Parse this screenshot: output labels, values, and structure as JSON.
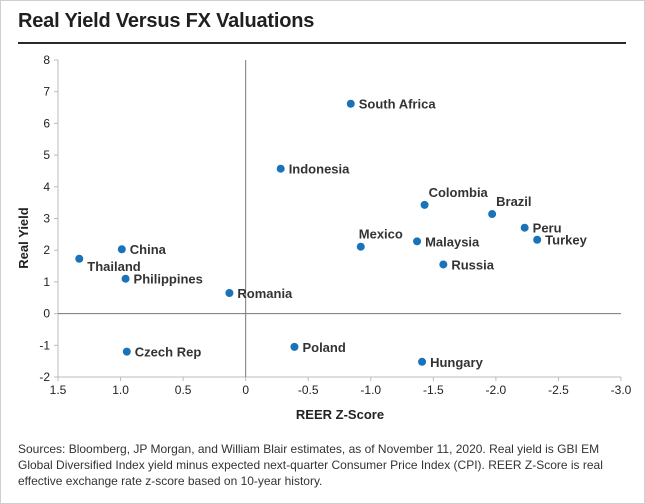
{
  "title": "Real Yield Versus FX Valuations",
  "footnote": "Sources: Bloomberg, JP Morgan, and William Blair estimates, as of November 11, 2020. Real yield is GBI EM Global Diversified Index yield minus expected next-quarter Consumer Price Index (CPI). REER Z-Score is real effective exchange rate z-score based on 10-year history.",
  "colors": {
    "point": "#1a73b8",
    "axis": "#bbbbbb",
    "zero_line": "#777777",
    "text": "#222222"
  },
  "chart_data": {
    "type": "scatter",
    "xlabel": "REER Z-Score",
    "ylabel": "Real Yield",
    "xlim": [
      1.5,
      -3.0
    ],
    "ylim": [
      -2,
      8
    ],
    "x_reversed": true,
    "x_ticks": [
      1.5,
      1.0,
      0.5,
      0,
      -0.5,
      -1.0,
      -1.5,
      -2.0,
      -2.5,
      -3.0
    ],
    "x_tick_labels": [
      "1.5",
      "1.0",
      "0.5",
      "0",
      "-0.5",
      "-1.0",
      "-1.5",
      "-2.0",
      "-2.5",
      "-3.0"
    ],
    "y_ticks": [
      -2,
      -1,
      0,
      1,
      2,
      3,
      4,
      5,
      6,
      7,
      8
    ],
    "y_tick_labels": [
      "-2",
      "-1",
      "0",
      "1",
      "2",
      "3",
      "4",
      "5",
      "6",
      "7",
      "8"
    ],
    "grid": false,
    "points": [
      {
        "label": "South Africa",
        "x": -0.84,
        "y": 6.62,
        "label_pos": "right"
      },
      {
        "label": "Indonesia",
        "x": -0.28,
        "y": 4.57,
        "label_pos": "right"
      },
      {
        "label": "Colombia",
        "x": -1.43,
        "y": 3.43,
        "label_pos": "above-right"
      },
      {
        "label": "Brazil",
        "x": -1.97,
        "y": 3.14,
        "label_pos": "above-right"
      },
      {
        "label": "Peru",
        "x": -2.23,
        "y": 2.71,
        "label_pos": "right"
      },
      {
        "label": "Turkey",
        "x": -2.33,
        "y": 2.33,
        "label_pos": "right"
      },
      {
        "label": "Mexico",
        "x": -0.92,
        "y": 2.11,
        "label_pos": "above"
      },
      {
        "label": "Malaysia",
        "x": -1.37,
        "y": 2.28,
        "label_pos": "right"
      },
      {
        "label": "Russia",
        "x": -1.58,
        "y": 1.55,
        "label_pos": "right"
      },
      {
        "label": "China",
        "x": 0.99,
        "y": 2.03,
        "label_pos": "right"
      },
      {
        "label": "Thailand",
        "x": 1.33,
        "y": 1.73,
        "label_pos": "below-right"
      },
      {
        "label": "Philippines",
        "x": 0.96,
        "y": 1.1,
        "label_pos": "right"
      },
      {
        "label": "Romania",
        "x": 0.13,
        "y": 0.65,
        "label_pos": "right"
      },
      {
        "label": "Czech Rep",
        "x": 0.95,
        "y": -1.2,
        "label_pos": "right"
      },
      {
        "label": "Poland",
        "x": -0.39,
        "y": -1.05,
        "label_pos": "right"
      },
      {
        "label": "Hungary",
        "x": -1.41,
        "y": -1.52,
        "label_pos": "right"
      }
    ]
  }
}
